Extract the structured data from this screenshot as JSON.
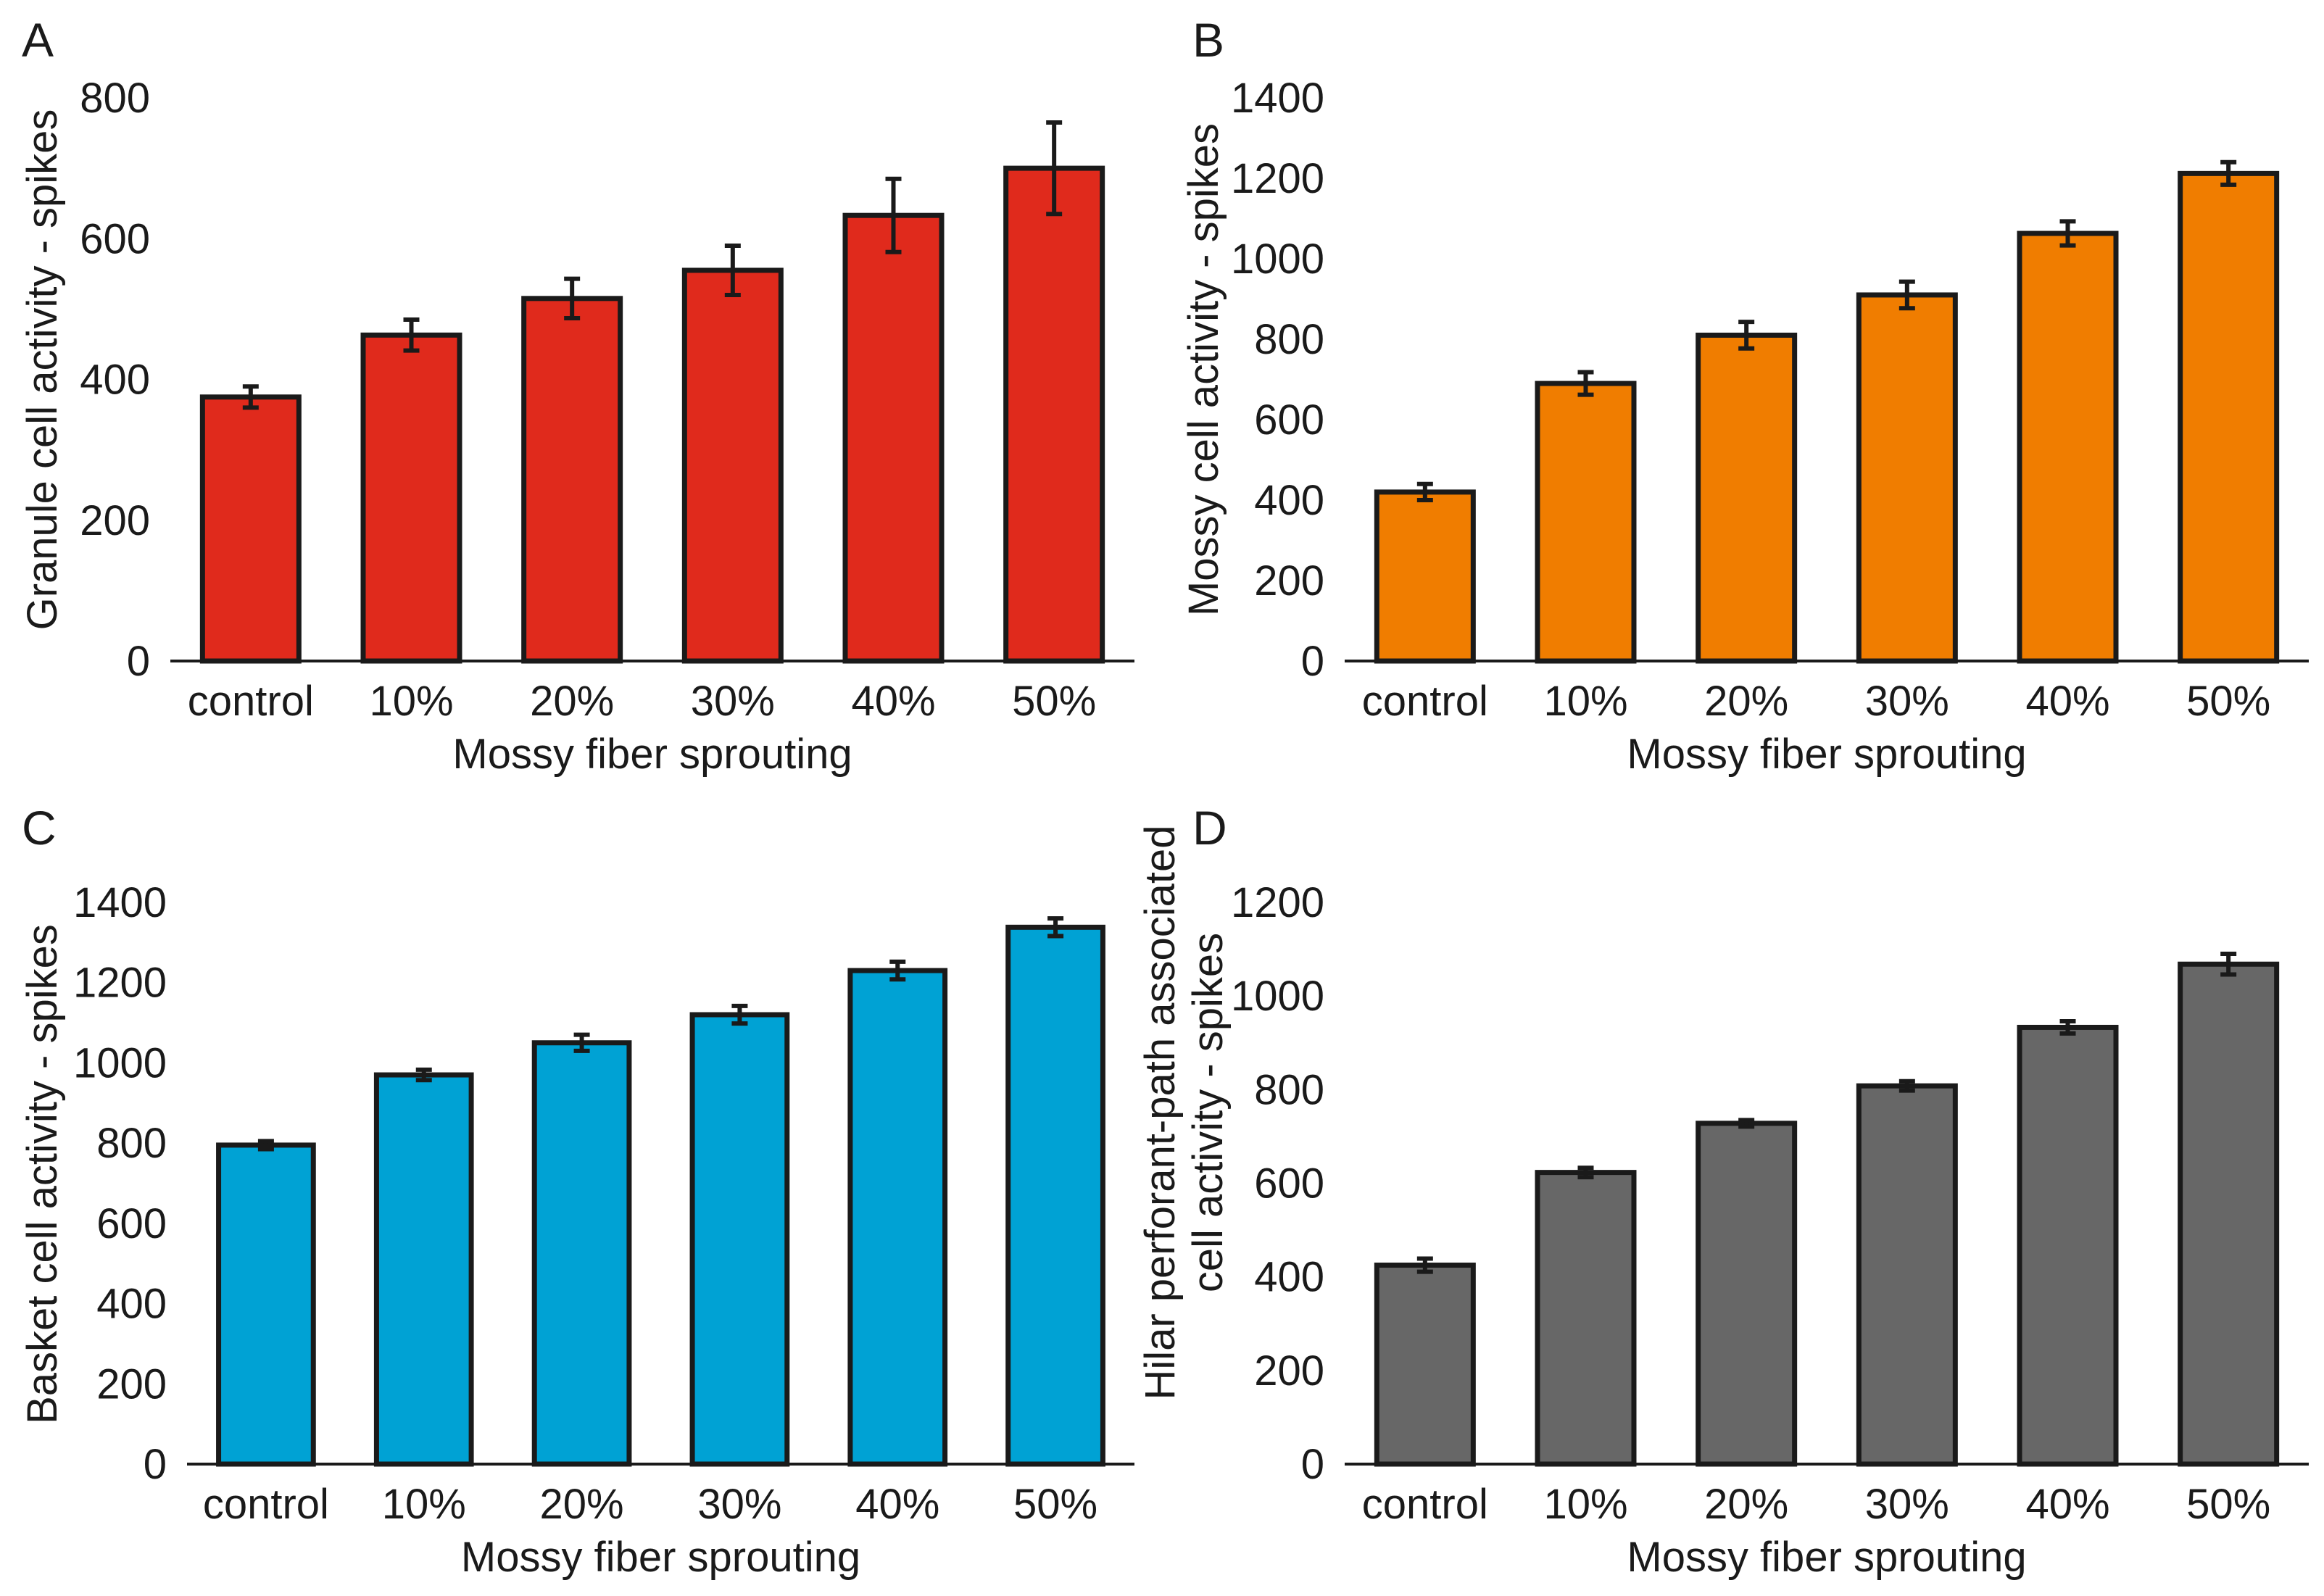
{
  "chart_data": [
    {
      "panel": "A",
      "type": "bar",
      "categories": [
        "control",
        "10%",
        "20%",
        "30%",
        "40%",
        "50%"
      ],
      "values": [
        375,
        463,
        515,
        555,
        633,
        700
      ],
      "errors": [
        15,
        22,
        28,
        35,
        52,
        65
      ],
      "color": "#e02a1c",
      "xlabel": "Mossy fiber sprouting",
      "ylabel": [
        "Granule cell activity - spikes"
      ],
      "ylim": [
        0,
        800
      ],
      "yticks": [
        0,
        200,
        400,
        600,
        800
      ]
    },
    {
      "panel": "B",
      "type": "bar",
      "categories": [
        "control",
        "10%",
        "20%",
        "30%",
        "40%",
        "50%"
      ],
      "values": [
        420,
        690,
        810,
        910,
        1063,
        1212
      ],
      "errors": [
        20,
        28,
        33,
        33,
        30,
        28
      ],
      "color": "#f07d00",
      "xlabel": "Mossy fiber sprouting",
      "ylabel": [
        "Mossy cell activity - spikes"
      ],
      "ylim": [
        0,
        1400
      ],
      "yticks": [
        0,
        200,
        400,
        600,
        800,
        1000,
        1200,
        1400
      ]
    },
    {
      "panel": "C",
      "type": "bar",
      "categories": [
        "control",
        "10%",
        "20%",
        "30%",
        "40%",
        "50%"
      ],
      "values": [
        795,
        970,
        1050,
        1120,
        1230,
        1338
      ],
      "errors": [
        10,
        13,
        20,
        22,
        22,
        22
      ],
      "color": "#00a2d4",
      "xlabel": "Mossy fiber sprouting",
      "ylabel": [
        "Basket cell activity - spikes"
      ],
      "ylim": [
        0,
        1400
      ],
      "yticks": [
        0,
        200,
        400,
        600,
        800,
        1000,
        1200,
        1400
      ]
    },
    {
      "panel": "D",
      "type": "bar",
      "categories": [
        "control",
        "10%",
        "20%",
        "30%",
        "40%",
        "50%"
      ],
      "values": [
        425,
        623,
        728,
        808,
        933,
        1068
      ],
      "errors": [
        14,
        10,
        7,
        10,
        13,
        22
      ],
      "color": "#676767",
      "xlabel": "Mossy fiber sprouting",
      "ylabel": [
        "Hilar perforant-path associated",
        "cell activity - spikes"
      ],
      "ylim": [
        0,
        1200
      ],
      "yticks": [
        0,
        200,
        400,
        600,
        800,
        1000,
        1200
      ]
    }
  ]
}
